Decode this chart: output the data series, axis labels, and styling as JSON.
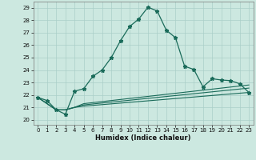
{
  "title": "",
  "xlabel": "Humidex (Indice chaleur)",
  "bg_color": "#cce8e0",
  "grid_color": "#aacfc8",
  "line_color": "#1a6b5a",
  "xlim": [
    -0.5,
    23.5
  ],
  "ylim": [
    19.6,
    29.5
  ],
  "xticks": [
    0,
    1,
    2,
    3,
    4,
    5,
    6,
    7,
    8,
    9,
    10,
    11,
    12,
    13,
    14,
    15,
    16,
    17,
    18,
    19,
    20,
    21,
    22,
    23
  ],
  "yticks": [
    20,
    21,
    22,
    23,
    24,
    25,
    26,
    27,
    28,
    29
  ],
  "line1_x": [
    0,
    1,
    2,
    3,
    4,
    5,
    6,
    7,
    8,
    9,
    10,
    11,
    12,
    13,
    14,
    15,
    16,
    17,
    18,
    19,
    20,
    21,
    22,
    23
  ],
  "line1_y": [
    21.8,
    21.55,
    20.8,
    20.45,
    22.3,
    22.5,
    23.5,
    24.0,
    25.0,
    26.35,
    27.5,
    28.1,
    29.05,
    28.75,
    27.2,
    26.6,
    24.3,
    24.05,
    22.65,
    23.3,
    23.2,
    23.15,
    22.9,
    22.2
  ],
  "line2_x": [
    0,
    2,
    3,
    4,
    5,
    23
  ],
  "line2_y": [
    21.8,
    20.8,
    20.8,
    21.0,
    21.1,
    22.2
  ],
  "line3_x": [
    0,
    2,
    3,
    4,
    5,
    23
  ],
  "line3_y": [
    21.8,
    20.8,
    20.8,
    21.0,
    21.2,
    22.55
  ],
  "line4_x": [
    0,
    2,
    3,
    4,
    5,
    23
  ],
  "line4_y": [
    21.8,
    20.8,
    20.8,
    21.0,
    21.3,
    22.8
  ]
}
